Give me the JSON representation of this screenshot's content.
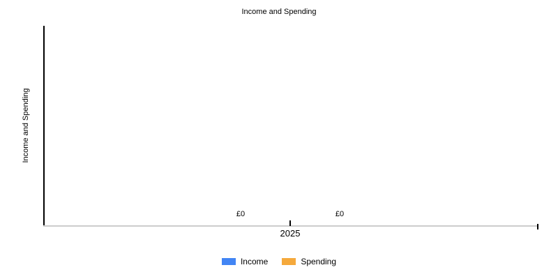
{
  "chart": {
    "title": "Income and Spending",
    "y_axis_title": "Income and Spending",
    "x_tick_label": "2025",
    "value_labels": {
      "income": "£0",
      "spending": "£0"
    },
    "legend": {
      "items": [
        {
          "label": "Income",
          "color": "#4285f4"
        },
        {
          "label": "Spending",
          "color": "#f5a93c"
        }
      ]
    },
    "colors": {
      "income": "#4285f4",
      "spending": "#f5a93c",
      "y_axis_line": "#000000",
      "x_axis_line": "#cccccc",
      "text": "#000000",
      "background": "#ffffff"
    }
  },
  "chart_data": {
    "type": "bar",
    "title": "Income and Spending",
    "xlabel": "",
    "ylabel": "Income and Spending",
    "categories": [
      "2025"
    ],
    "series": [
      {
        "name": "Income",
        "values": [
          0
        ],
        "color": "#4285f4",
        "data_labels": [
          "£0"
        ]
      },
      {
        "name": "Spending",
        "values": [
          0
        ],
        "color": "#f5a93c",
        "data_labels": [
          "£0"
        ]
      }
    ],
    "currency_symbol": "£",
    "grid": false,
    "y_tick_labels": [],
    "legend_position": "bottom"
  }
}
